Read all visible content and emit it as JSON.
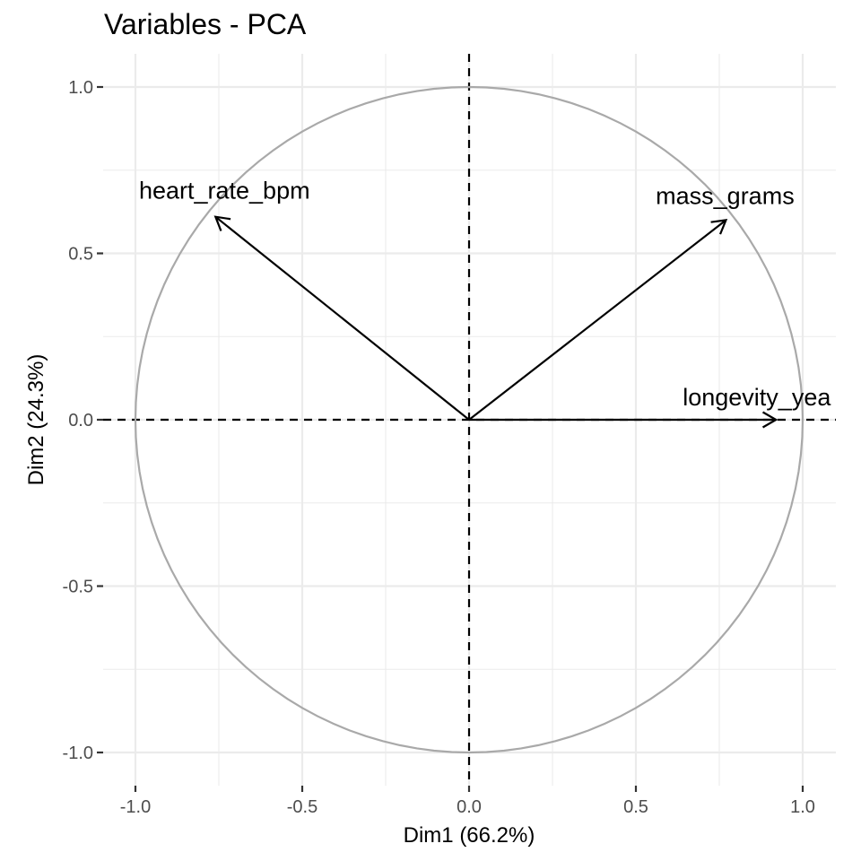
{
  "chart_data": {
    "type": "pca-variables",
    "title": "Variables - PCA",
    "xlabel": "Dim1 (66.2%)",
    "ylabel": "Dim2 (24.3%)",
    "xlim": [
      -1.1,
      1.1
    ],
    "ylim": [
      -1.1,
      1.1
    ],
    "x_ticks": [
      -1.0,
      -0.5,
      0.0,
      0.5,
      1.0
    ],
    "x_tick_labels": [
      "-1.0",
      "-0.5",
      "0.0",
      "0.5",
      "1.0"
    ],
    "y_ticks": [
      -1.0,
      -0.5,
      0.0,
      0.5,
      1.0
    ],
    "y_tick_labels": [
      "-1.0",
      "-0.5",
      "0.0",
      "0.5",
      "1.0"
    ],
    "grid": true,
    "correlation_circle_radius": 1.0,
    "reference_lines": [
      0,
      0
    ],
    "variables": [
      {
        "name": "heart_rate_bpm",
        "x": -0.76,
        "y": 0.61
      },
      {
        "name": "mass_grams",
        "x": 0.77,
        "y": 0.6
      },
      {
        "name": "longevity_years",
        "x": 0.92,
        "y": 0.0
      }
    ],
    "variable_labels": [
      {
        "bind": "heart_rate_bpm",
        "text": "heart_rate_bpm"
      },
      {
        "bind": "mass_grams",
        "text": "mass_grams"
      },
      {
        "bind": "longevity_years",
        "text": "longevity_yea"
      }
    ]
  }
}
